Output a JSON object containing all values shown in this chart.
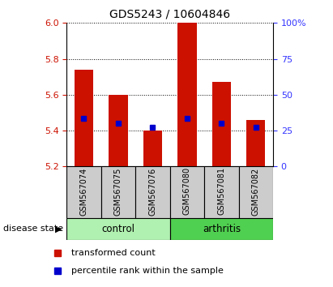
{
  "title": "GDS5243 / 10604846",
  "samples": [
    "GSM567074",
    "GSM567075",
    "GSM567076",
    "GSM567080",
    "GSM567081",
    "GSM567082"
  ],
  "bar_bottoms": [
    5.2,
    5.2,
    5.2,
    5.2,
    5.2,
    5.2
  ],
  "bar_tops": [
    5.74,
    5.6,
    5.4,
    6.0,
    5.67,
    5.46
  ],
  "percentile_values": [
    5.47,
    5.44,
    5.42,
    5.47,
    5.44,
    5.42
  ],
  "ylim": [
    5.2,
    6.0
  ],
  "y_ticks_left": [
    5.2,
    5.4,
    5.6,
    5.8,
    6.0
  ],
  "y_ticks_right_pct": [
    0,
    25,
    50,
    75,
    100
  ],
  "y_ticks_right_labels": [
    "0",
    "25",
    "50",
    "75",
    "100%"
  ],
  "bar_color": "#CC1100",
  "percentile_color": "#0000CC",
  "control_color": "#B0F0B0",
  "arthritis_color": "#50D050",
  "group_label": "disease state",
  "legend_bar_label": "transformed count",
  "legend_pct_label": "percentile rank within the sample",
  "tick_label_color_left": "#CC1100",
  "tick_label_color_right": "#3333FF",
  "sample_area_color": "#CCCCCC",
  "bar_width": 0.55
}
